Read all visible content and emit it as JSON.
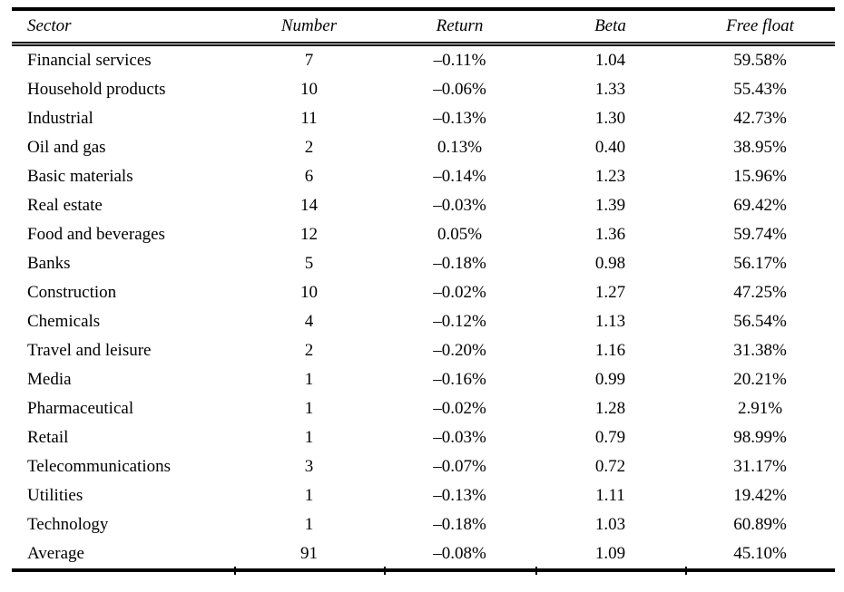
{
  "page": {
    "background": "#ffffff",
    "rule_color": "#000000",
    "text_color": "#000000"
  },
  "table": {
    "columns": [
      {
        "key": "sector",
        "label": "Sector",
        "align": "left"
      },
      {
        "key": "number",
        "label": "Number",
        "align": "center"
      },
      {
        "key": "return",
        "label": "Return",
        "align": "center"
      },
      {
        "key": "beta",
        "label": "Beta",
        "align": "center"
      },
      {
        "key": "free_float",
        "label": "Free float",
        "align": "center"
      }
    ],
    "rows": [
      [
        "Financial services",
        "7",
        "–0.11%",
        "1.04",
        "59.58%"
      ],
      [
        "Household products",
        "10",
        "–0.06%",
        "1.33",
        "55.43%"
      ],
      [
        "Industrial",
        "11",
        "–0.13%",
        "1.30",
        "42.73%"
      ],
      [
        "Oil and gas",
        "2",
        "0.13%",
        "0.40",
        "38.95%"
      ],
      [
        "Basic materials",
        "6",
        "–0.14%",
        "1.23",
        "15.96%"
      ],
      [
        "Real estate",
        "14",
        "–0.03%",
        "1.39",
        "69.42%"
      ],
      [
        "Food and beverages",
        "12",
        "0.05%",
        "1.36",
        "59.74%"
      ],
      [
        "Banks",
        "5",
        "–0.18%",
        "0.98",
        "56.17%"
      ],
      [
        "Construction",
        "10",
        "–0.02%",
        "1.27",
        "47.25%"
      ],
      [
        "Chemicals",
        "4",
        "–0.12%",
        "1.13",
        "56.54%"
      ],
      [
        "Travel and leisure",
        "2",
        "–0.20%",
        "1.16",
        "31.38%"
      ],
      [
        "Media",
        "1",
        "–0.16%",
        "0.99",
        "20.21%"
      ],
      [
        "Pharmaceutical",
        "1",
        "–0.02%",
        "1.28",
        "2.91%"
      ],
      [
        "Retail",
        "1",
        "–0.03%",
        "0.79",
        "98.99%"
      ],
      [
        "Telecommunications",
        "3",
        "–0.07%",
        "0.72",
        "31.17%"
      ],
      [
        "Utilities",
        "1",
        "–0.13%",
        "1.11",
        "19.42%"
      ],
      [
        "Technology",
        "1",
        "–0.18%",
        "1.03",
        "60.89%"
      ],
      [
        "Average",
        "91",
        "–0.08%",
        "1.09",
        "45.10%"
      ]
    ]
  }
}
